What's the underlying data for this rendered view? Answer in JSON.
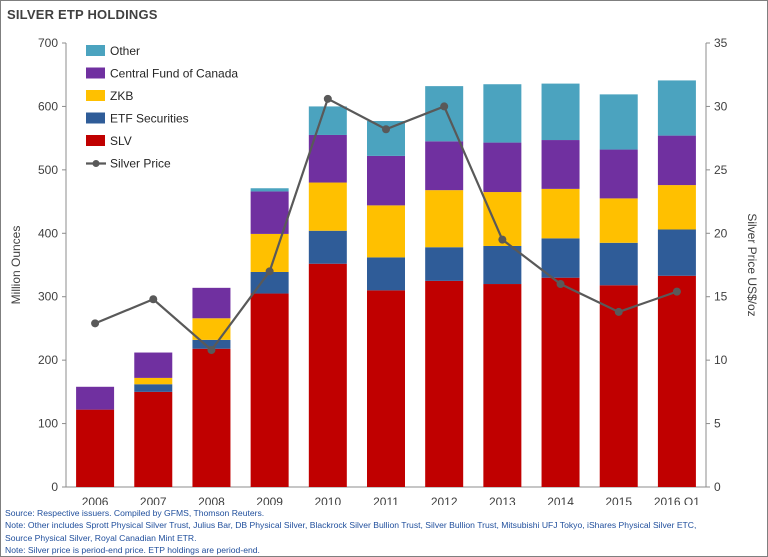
{
  "title": "SILVER ETP HOLDINGS",
  "colors": {
    "SLV": "#c00000",
    "ETF Securities": "#2f5c98",
    "ZKB": "#ffc000",
    "Central Fund of Canada": "#7030a0",
    "Other": "#4ba3bf",
    "Silver Price": "#595959"
  },
  "chart_data": {
    "type": "bar",
    "stacked": true,
    "categories": [
      "2006",
      "2007",
      "2008",
      "2009",
      "2010",
      "2011",
      "2012",
      "2013",
      "2014",
      "2015",
      "2016 Q1"
    ],
    "series": [
      {
        "name": "SLV",
        "values": [
          122,
          150,
          218,
          305,
          352,
          310,
          325,
          320,
          330,
          318,
          333
        ]
      },
      {
        "name": "ETF Securities",
        "values": [
          0,
          12,
          14,
          34,
          52,
          52,
          53,
          60,
          62,
          67,
          73
        ]
      },
      {
        "name": "ZKB",
        "values": [
          0,
          10,
          34,
          60,
          76,
          82,
          90,
          85,
          78,
          70,
          70
        ]
      },
      {
        "name": "Central Fund of Canada",
        "values": [
          36,
          40,
          48,
          67,
          75,
          78,
          77,
          78,
          77,
          77,
          78
        ]
      },
      {
        "name": "Other",
        "values": [
          0,
          0,
          0,
          5,
          45,
          55,
          87,
          92,
          89,
          87,
          87
        ]
      }
    ],
    "line_series": {
      "name": "Silver Price",
      "axis": "right",
      "values": [
        12.9,
        14.8,
        10.8,
        17.0,
        30.6,
        28.2,
        30.0,
        19.5,
        16.0,
        13.8,
        15.4
      ]
    },
    "ylabel": "Million Ounces",
    "ylim": [
      0,
      700
    ],
    "yticks": [
      0,
      100,
      200,
      300,
      400,
      500,
      600,
      700
    ],
    "y2label": "Silver Price US$/oz",
    "y2lim": [
      0,
      35
    ],
    "y2ticks": [
      0,
      5,
      10,
      15,
      20,
      25,
      30,
      35
    ],
    "grid": false,
    "legend_placement": "top-left",
    "legend_order": [
      "Other",
      "Central Fund of Canada",
      "ZKB",
      "ETF Securities",
      "SLV",
      "Silver Price"
    ]
  },
  "notes": [
    "Source: Respective issuers. Compiled by GFMS, Thomson Reuters.",
    "Note: Other includes Sprott Physical Silver Trust, Julius Bar, DB Physical Silver, Blackrock Silver Bullion Trust, Silver Bullion Trust, Mitsubishi UFJ Tokyo, iShares Physical Silver ETC,",
    "Source Physical Silver, Royal Canadian Mint ETR.",
    "Note: Silver price is period-end price. ETP holdings are period-end."
  ]
}
